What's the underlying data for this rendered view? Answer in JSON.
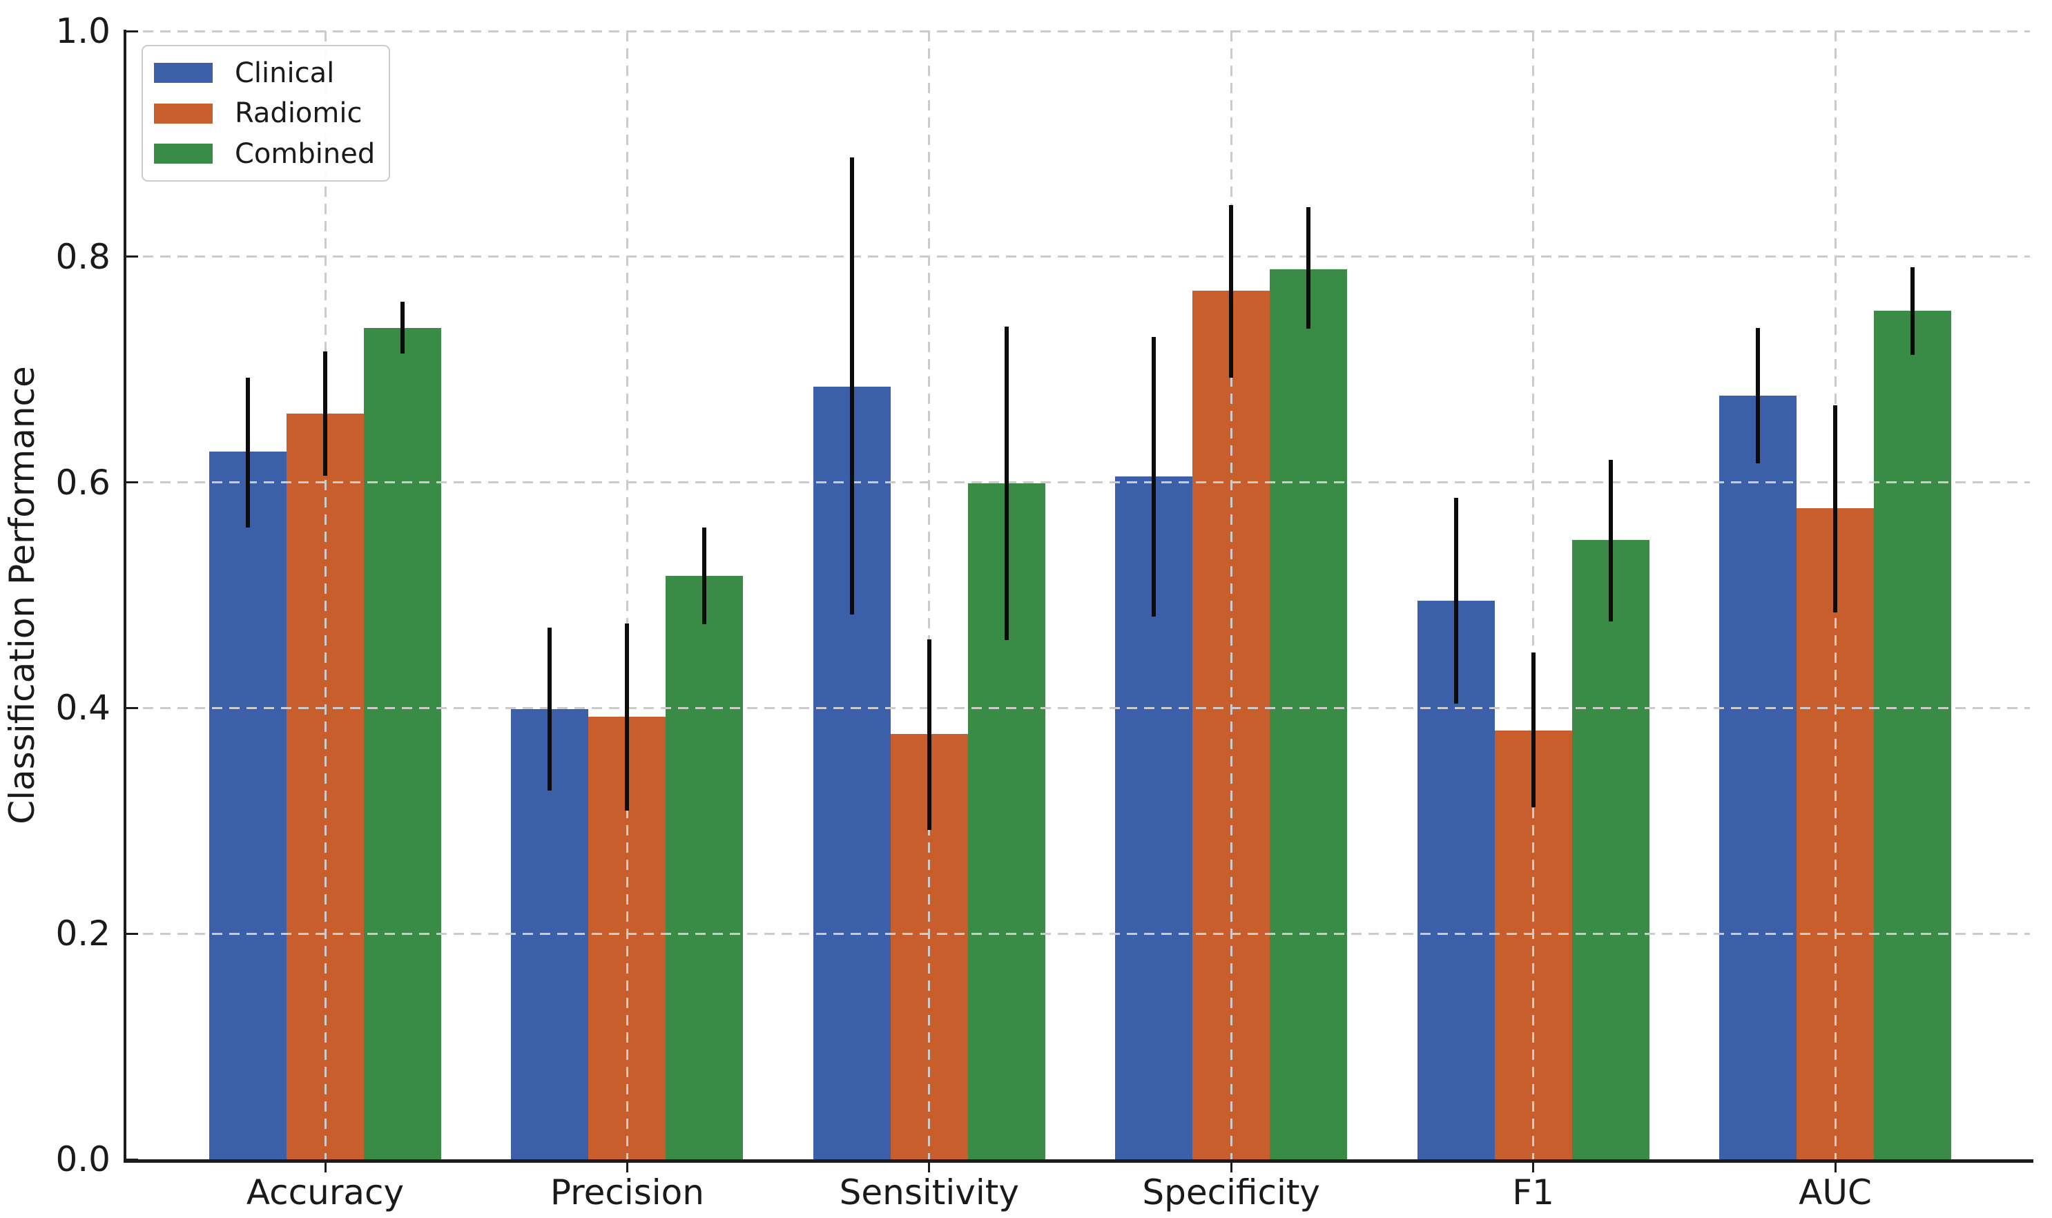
{
  "chart_data": {
    "type": "bar",
    "title": "",
    "xlabel": "",
    "ylabel": "Classification Performance",
    "ylim": [
      0.0,
      1.0
    ],
    "yticks": [
      0.0,
      0.2,
      0.4,
      0.6,
      0.8,
      1.0
    ],
    "grid": true,
    "grid_style": "dashed",
    "legend_position": "upper left",
    "categories": [
      "Accuracy",
      "Precision",
      "Sensitivity",
      "Specificity",
      "F1",
      "AUC"
    ],
    "series": [
      {
        "name": "Clinical",
        "color": "#3b5fa8",
        "values": [
          0.627,
          0.399,
          0.685,
          0.605,
          0.495,
          0.677
        ],
        "err_low": [
          0.56,
          0.327,
          0.483,
          0.481,
          0.404,
          0.617
        ],
        "err_high": [
          0.693,
          0.471,
          0.888,
          0.729,
          0.586,
          0.737
        ]
      },
      {
        "name": "Radiomic",
        "color": "#c95e2d",
        "values": [
          0.661,
          0.392,
          0.377,
          0.77,
          0.38,
          0.577
        ],
        "err_low": [
          0.606,
          0.309,
          0.292,
          0.693,
          0.312,
          0.485
        ],
        "err_high": [
          0.716,
          0.475,
          0.461,
          0.846,
          0.449,
          0.668
        ]
      },
      {
        "name": "Combined",
        "color": "#3a8b45",
        "values": [
          0.737,
          0.517,
          0.599,
          0.789,
          0.549,
          0.752
        ],
        "err_low": [
          0.714,
          0.474,
          0.46,
          0.736,
          0.477,
          0.713
        ],
        "err_high": [
          0.76,
          0.56,
          0.738,
          0.844,
          0.62,
          0.791
        ]
      }
    ],
    "style": {
      "background": "#ffffff",
      "grid_color": "#cbcbcb",
      "axis_color": "#1c1c1c",
      "text_color": "#1a1a1a",
      "errorbar_color": "#0c0c0c"
    }
  }
}
